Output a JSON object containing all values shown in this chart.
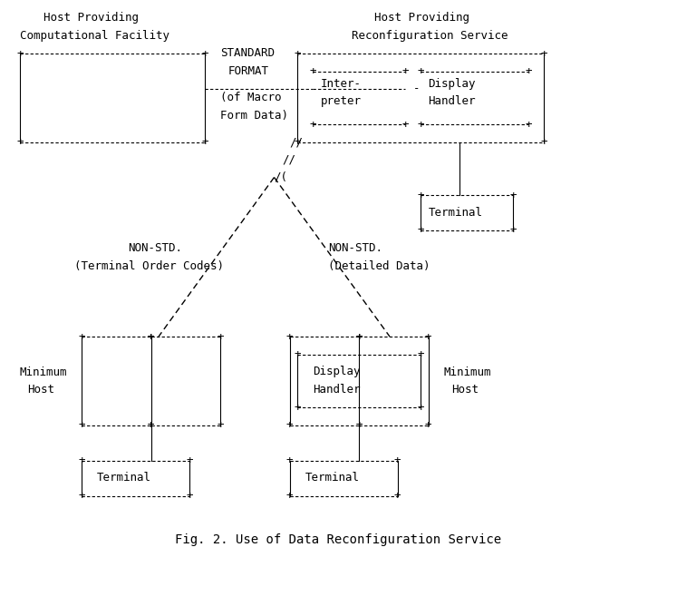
{
  "title": "Fig. 2. Use of Data Reconfiguration Service",
  "bg_color": "#ffffff",
  "text_color": "#000000",
  "font_family": "Courier New",
  "font_size": 10.5,
  "title_font_size": 10.5,
  "diagram_lines": [
    "    Host Providing              Host Providing          ",
    "Computational Facility      Reconfiguration Service     ",
    "+-----------------------+  STANDARD  +----------------+------------------+",
    "|                       |   FORMAT   |                |                  |",
    "|                       |------------|   Inter-    -  |   Display        |",
    "|                       |  (of Macro |   preter       |   Handler        |",
    "|                       | Form Data) |                |                  |",
    "+-----------------------+ //+----------------+------------------+",
    "                          //                    |",
    "                         /(                     +------------+",
    "                        /  \\                    |  Terminal  |",
    "                       /    \\                   +------------+",
    "                      /      \\",
    "  NON-STD.           /        \\       NON-STD.",
    "(Terminal Order Codes)          \\   (Detailed Data)",
    "                    /            \\",
    "                   /              \\",
    "                  /                \\",
    "        +-------|---------+    +--------|---------+",
    "        |       |         |    |   +-----------+  |",
    "Minimum |       |         |    |   |  Display  |  | Minimum",
    "  Host  |       |         |    |   |  Handler  |  |  Host",
    "        |       |         |    |   +-----------+  |",
    "        +-------|---------+    +--------|---------+",
    "                |                       |",
    "        +-------+-----+         +-------+-----+",
    "        |  Terminal   |         |  Terminal   |",
    "        +-------------+         +-------------+"
  ]
}
